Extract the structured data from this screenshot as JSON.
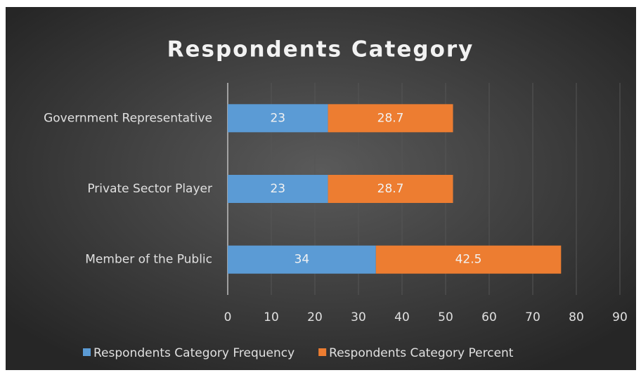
{
  "chart_data": {
    "type": "bar",
    "orientation": "horizontal",
    "stacked": true,
    "title": "Respondents Category",
    "categories": [
      "Government Representative",
      "Private Sector Player",
      "Member of the Public"
    ],
    "series": [
      {
        "name": "Respondents Category Frequency",
        "color": "#5b9bd5",
        "values": [
          23,
          23,
          34
        ]
      },
      {
        "name": "Respondents Category Percent",
        "color": "#ed7d31",
        "values": [
          28.7,
          28.7,
          42.5
        ]
      }
    ],
    "xlim": [
      0,
      90
    ],
    "xticks": [
      0,
      10,
      20,
      30,
      40,
      50,
      60,
      70,
      80,
      90
    ],
    "grid": true,
    "legend": "bottom"
  }
}
